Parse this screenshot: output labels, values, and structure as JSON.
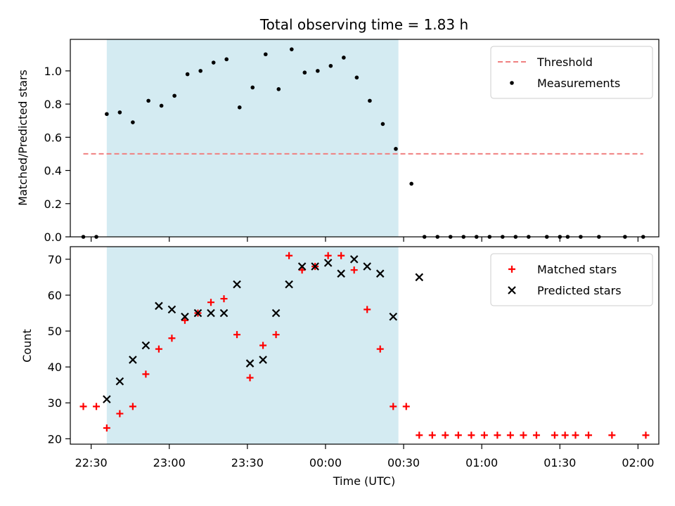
{
  "figure": {
    "title": "Total observing time = 1.83 h",
    "xlabel": "Time (UTC)"
  },
  "chart_data": [
    {
      "type": "scatter",
      "panel": "top",
      "ylabel": "Matched/Predicted stars",
      "xlim": [
        "22:22",
        "02:08"
      ],
      "ylim": [
        0,
        1.19
      ],
      "yticks": [
        "0.0",
        "0.2",
        "0.4",
        "0.6",
        "0.8",
        "1.0"
      ],
      "grid": false,
      "legend": "top-right",
      "shaded_interval": [
        "22:36",
        "00:28"
      ],
      "shade_color": "#add8e6",
      "threshold": {
        "name": "Threshold",
        "y": 0.5,
        "x_range": [
          "22:27",
          "02:02"
        ],
        "color": "#f08080",
        "style": "dashed"
      },
      "series": [
        {
          "name": "Measurements",
          "color": "#000000",
          "marker": "dot",
          "x": [
            "22:27",
            "22:32",
            "22:36",
            "22:41",
            "22:46",
            "22:52",
            "22:57",
            "23:02",
            "23:07",
            "23:12",
            "23:17",
            "23:22",
            "23:27",
            "23:32",
            "23:37",
            "23:42",
            "23:47",
            "23:52",
            "23:57",
            "00:02",
            "00:07",
            "00:12",
            "00:17",
            "00:22",
            "00:27",
            "00:33",
            "00:38",
            "00:43",
            "00:48",
            "00:53",
            "00:58",
            "01:03",
            "01:08",
            "01:13",
            "01:18",
            "01:25",
            "01:30",
            "01:33",
            "01:38",
            "01:45",
            "01:55",
            "02:02"
          ],
          "y": [
            0.0,
            0.0,
            0.74,
            0.75,
            0.69,
            0.82,
            0.79,
            0.85,
            0.98,
            1.0,
            1.05,
            1.07,
            0.78,
            0.9,
            1.1,
            0.89,
            1.13,
            0.99,
            1.0,
            1.03,
            1.08,
            0.96,
            0.82,
            0.68,
            0.53,
            0.32,
            0.0,
            0.0,
            0.0,
            0.0,
            0.0,
            0.0,
            0.0,
            0.0,
            0.0,
            0.0,
            0.0,
            0.0,
            0.0,
            0.0,
            0.0,
            0.0
          ]
        }
      ]
    },
    {
      "type": "scatter",
      "panel": "bottom",
      "ylabel": "Count",
      "xlim": [
        "22:22",
        "02:08"
      ],
      "ylim": [
        18.5,
        73.5
      ],
      "yticks": [
        "20",
        "30",
        "40",
        "50",
        "60",
        "70"
      ],
      "xticks": [
        "22:30",
        "23:00",
        "23:30",
        "00:00",
        "00:30",
        "01:00",
        "01:30",
        "02:00"
      ],
      "grid": false,
      "legend": "top-right",
      "shaded_interval": [
        "22:36",
        "00:28"
      ],
      "shade_color": "#add8e6",
      "series": [
        {
          "name": "Matched stars",
          "color": "#ff0000",
          "marker": "plus",
          "x": [
            "22:27",
            "22:32",
            "22:36",
            "22:41",
            "22:46",
            "22:51",
            "22:56",
            "23:01",
            "23:06",
            "23:11",
            "23:16",
            "23:21",
            "23:26",
            "23:31",
            "23:36",
            "23:41",
            "23:46",
            "23:51",
            "23:56",
            "00:01",
            "00:06",
            "00:11",
            "00:16",
            "00:21",
            "00:26",
            "00:31",
            "00:36",
            "00:41",
            "00:46",
            "00:51",
            "00:56",
            "01:01",
            "01:06",
            "01:11",
            "01:16",
            "01:21",
            "01:28",
            "01:32",
            "01:36",
            "01:41",
            "01:50",
            "02:03"
          ],
          "y": [
            29,
            29,
            23,
            27,
            29,
            38,
            45,
            48,
            53,
            55,
            58,
            59,
            49,
            37,
            46,
            49,
            71,
            67,
            68,
            71,
            71,
            67,
            56,
            45,
            29,
            29,
            21,
            21,
            21,
            21,
            21,
            21,
            21,
            21,
            21,
            21,
            21,
            21,
            21,
            21,
            21,
            21
          ]
        },
        {
          "name": "Predicted stars",
          "color": "#000000",
          "marker": "x",
          "x": [
            "22:36",
            "22:41",
            "22:46",
            "22:51",
            "22:56",
            "23:01",
            "23:06",
            "23:11",
            "23:16",
            "23:21",
            "23:26",
            "23:31",
            "23:36",
            "23:41",
            "23:46",
            "23:51",
            "23:56",
            "00:01",
            "00:06",
            "00:11",
            "00:16",
            "00:21",
            "00:26",
            "00:36"
          ],
          "y": [
            31,
            36,
            42,
            46,
            57,
            56,
            54,
            55,
            55,
            55,
            63,
            41,
            42,
            55,
            63,
            68,
            68,
            69,
            66,
            70,
            68,
            66,
            54,
            65
          ]
        }
      ]
    }
  ]
}
